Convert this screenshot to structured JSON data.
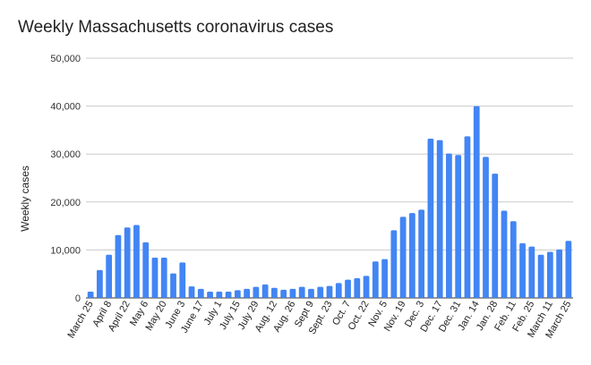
{
  "chart_data": {
    "type": "bar",
    "title": "Weekly Massachusetts coronavirus cases",
    "xlabel": "",
    "ylabel": "Weekly cases",
    "ylim": [
      0,
      50000
    ],
    "yticks": [
      "0",
      "10,000",
      "20,000",
      "30,000",
      "40,000",
      "50,000"
    ],
    "grid": true,
    "color": "#4285f4",
    "tick_labels": [
      "March 25",
      "April 8",
      "April 22",
      "May 6",
      "May 20",
      "June 3",
      "June 17",
      "July 1",
      "July 15",
      "July 29",
      "Aug. 12",
      "Aug. 26",
      "Sept 9",
      "Sept. 23",
      "Oct. 7",
      "Oct. 22",
      "Nov. 5",
      "Nov. 19",
      "Dec. 3",
      "Dec. 17",
      "Dec. 31",
      "Jan. 14",
      "Jan. 28",
      "Feb. 11",
      "Feb. 25",
      "March 11",
      "March 25"
    ],
    "values": [
      1300,
      5800,
      9000,
      13100,
      14700,
      15200,
      11600,
      8400,
      8400,
      5100,
      7400,
      2400,
      1900,
      1300,
      1300,
      1300,
      1600,
      1900,
      2300,
      2800,
      2100,
      1700,
      1900,
      2300,
      1900,
      2300,
      2500,
      3100,
      3800,
      4100,
      4600,
      7600,
      8100,
      14100,
      16900,
      17700,
      18400,
      33200,
      32900,
      30100,
      29800,
      33700,
      40000,
      29400,
      25900,
      18200,
      16000,
      11400,
      10700,
      9000,
      9600,
      10100,
      11900
    ]
  }
}
